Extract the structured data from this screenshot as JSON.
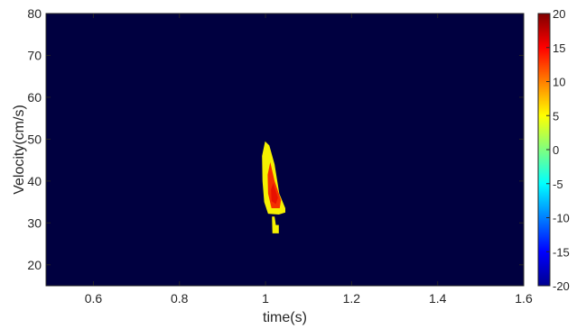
{
  "chart_data": {
    "type": "heatmap",
    "xlabel": "time(s)",
    "ylabel": "Velocity(cm/s)",
    "xlim": [
      0.49,
      1.6
    ],
    "ylim": [
      15,
      80
    ],
    "xticks": [
      0.6,
      0.8,
      1,
      1.2,
      1.4,
      1.6
    ],
    "xtick_labels": [
      "0.6",
      "0.8",
      "1",
      "1.2",
      "1.4",
      "1.6"
    ],
    "yticks": [
      20,
      30,
      40,
      50,
      60,
      70,
      80
    ],
    "ytick_labels": [
      "20",
      "30",
      "40",
      "50",
      "60",
      "70",
      "80"
    ],
    "background_value": -20,
    "colorbar": {
      "range": [
        -20,
        20
      ],
      "ticks": [
        20,
        15,
        10,
        5,
        0,
        -5,
        -10,
        -15,
        -20
      ],
      "tick_labels": [
        "20",
        "15",
        "10",
        "5",
        "0",
        "-5",
        "-10",
        "-15",
        "-20"
      ],
      "colormap": "jet"
    },
    "blobs": [
      {
        "name": "main-blob",
        "outline": [
          [
            0.999,
            49.5
          ],
          [
            1.009,
            48.5
          ],
          [
            1.021,
            44
          ],
          [
            1.032,
            37
          ],
          [
            1.046,
            33.5
          ],
          [
            1.046,
            32.5
          ],
          [
            1.031,
            32
          ],
          [
            1.006,
            32.2
          ],
          [
            0.997,
            35
          ],
          [
            0.993,
            40
          ],
          [
            0.992,
            46
          ]
        ],
        "value": 8
      },
      {
        "name": "main-blob-core",
        "outline": [
          [
            1.011,
            44.5
          ],
          [
            1.021,
            40
          ],
          [
            1.036,
            35.5
          ],
          [
            1.033,
            33.5
          ],
          [
            1.014,
            33.5
          ],
          [
            1.006,
            37
          ],
          [
            1.005,
            41.5
          ]
        ],
        "value": 15
      },
      {
        "name": "main-blob-hot",
        "outline": [
          [
            1.018,
            39.5
          ],
          [
            1.029,
            36
          ],
          [
            1.024,
            34.5
          ],
          [
            1.014,
            35.2
          ],
          [
            1.013,
            38
          ]
        ],
        "value": 18
      },
      {
        "name": "small-blob",
        "outline": [
          [
            1.015,
            31.5
          ],
          [
            1.021,
            31.5
          ],
          [
            1.024,
            29.5
          ],
          [
            1.031,
            29.5
          ],
          [
            1.031,
            27.5
          ],
          [
            1.016,
            27.5
          ]
        ],
        "value": 8
      }
    ]
  },
  "colors": {
    "background": "#000040",
    "blob_yellow": "#f6f100",
    "blob_orange": "#ff9a00",
    "blob_red": "#f33000",
    "blob_hot": "#e81000",
    "axis": "#262626"
  }
}
